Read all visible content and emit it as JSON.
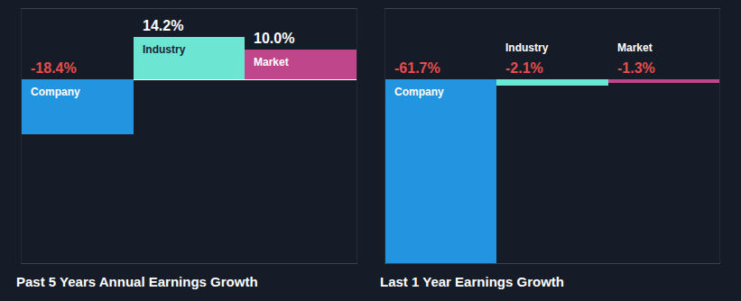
{
  "chart_data": [
    {
      "type": "bar",
      "title": "Past 5 Years Annual Earnings Growth",
      "categories": [
        "Company",
        "Industry",
        "Market"
      ],
      "values": [
        -18.4,
        14.2,
        10.0
      ],
      "value_labels": [
        "-18.4%",
        "14.2%",
        "10.0%"
      ],
      "colors": [
        "#2394df",
        "#6ce6d3",
        "#bf468a"
      ],
      "ylim": [
        -61.7,
        23.6
      ],
      "tick_labels": false,
      "data_labels": true
    },
    {
      "type": "bar",
      "title": "Last 1 Year Earnings Growth",
      "categories": [
        "Company",
        "Industry",
        "Market"
      ],
      "values": [
        -61.7,
        -2.1,
        -1.3
      ],
      "value_labels": [
        "-61.7%",
        "-2.1%",
        "-1.3%"
      ],
      "colors": [
        "#2394df",
        "#6ce6d3",
        "#bf468a"
      ],
      "ylim": [
        -61.7,
        23.6
      ],
      "tick_labels": false,
      "data_labels": true
    }
  ]
}
